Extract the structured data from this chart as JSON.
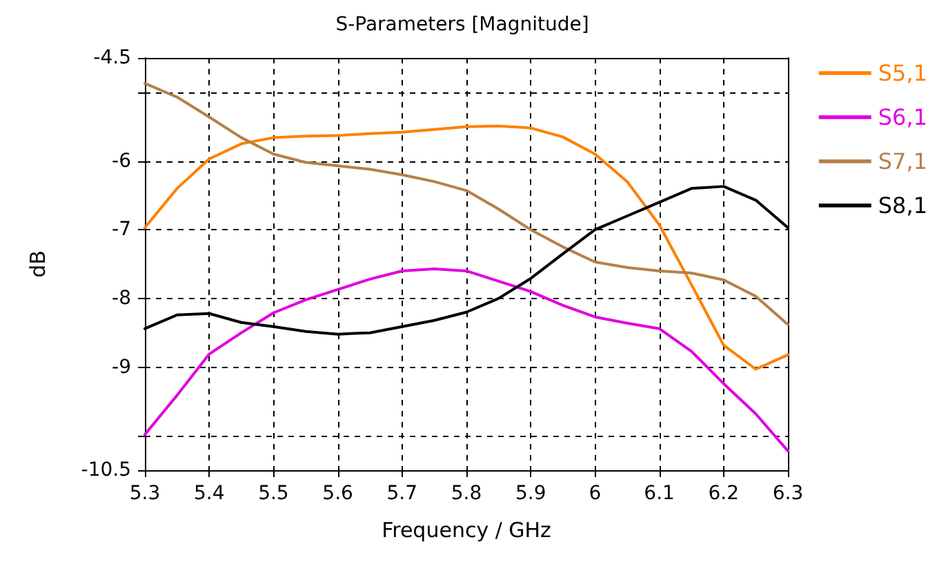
{
  "chart_data": {
    "type": "line",
    "title": "S-Parameters [Magnitude]",
    "xlabel": "Frequency / GHz",
    "ylabel": "dB",
    "x": [
      5.3,
      5.35,
      5.4,
      5.45,
      5.5,
      5.55,
      5.6,
      5.65,
      5.7,
      5.75,
      5.8,
      5.85,
      5.9,
      5.95,
      6.0,
      6.05,
      6.1,
      6.15,
      6.2,
      6.25,
      6.3
    ],
    "series": [
      {
        "name": "S5,1",
        "color": "#ff8000",
        "values": [
          -6.97,
          -6.4,
          -5.97,
          -5.75,
          -5.66,
          -5.64,
          -5.63,
          -5.6,
          -5.58,
          -5.54,
          -5.5,
          -5.49,
          -5.52,
          -5.65,
          -5.9,
          -6.3,
          -6.93,
          -7.8,
          -8.68,
          -9.03,
          -8.82
        ]
      },
      {
        "name": "S6,1",
        "color": "#e000e0",
        "values": [
          -9.98,
          -9.41,
          -8.81,
          -8.5,
          -8.21,
          -8.02,
          -7.87,
          -7.72,
          -7.6,
          -7.57,
          -7.6,
          -7.75,
          -7.9,
          -8.1,
          -8.27,
          -8.36,
          -8.44,
          -8.77,
          -9.24,
          -9.68,
          -10.22
        ]
      },
      {
        "name": "S7,1",
        "color": "#b5804a",
        "values": [
          -4.87,
          -5.07,
          -5.36,
          -5.66,
          -5.9,
          -6.02,
          -6.07,
          -6.12,
          -6.2,
          -6.3,
          -6.43,
          -6.7,
          -7.0,
          -7.25,
          -7.47,
          -7.55,
          -7.6,
          -7.63,
          -7.73,
          -7.97,
          -8.38
        ]
      },
      {
        "name": "S8,1",
        "color": "#000000",
        "values": [
          -8.44,
          -8.24,
          -8.22,
          -8.35,
          -8.41,
          -8.48,
          -8.52,
          -8.5,
          -8.41,
          -8.32,
          -8.2,
          -8.0,
          -7.71,
          -7.35,
          -7.0,
          -6.8,
          -6.6,
          -6.4,
          -6.37,
          -6.57,
          -6.97
        ]
      }
    ],
    "xlim": [
      5.3,
      6.3
    ],
    "xticks": [
      5.3,
      5.4,
      5.5,
      5.6,
      5.7,
      5.8,
      5.9,
      6,
      6.1,
      6.2,
      6.3
    ],
    "ylim": [
      -10.5,
      -4.5
    ],
    "yticks": [
      -10.5,
      {
        "value": -10,
        "label": null
      },
      -9,
      -8,
      -7,
      -6,
      {
        "value": -5,
        "label": null
      },
      -4.5
    ],
    "grid": true,
    "legend": "right",
    "marker": "none",
    "line_style": "solid"
  }
}
